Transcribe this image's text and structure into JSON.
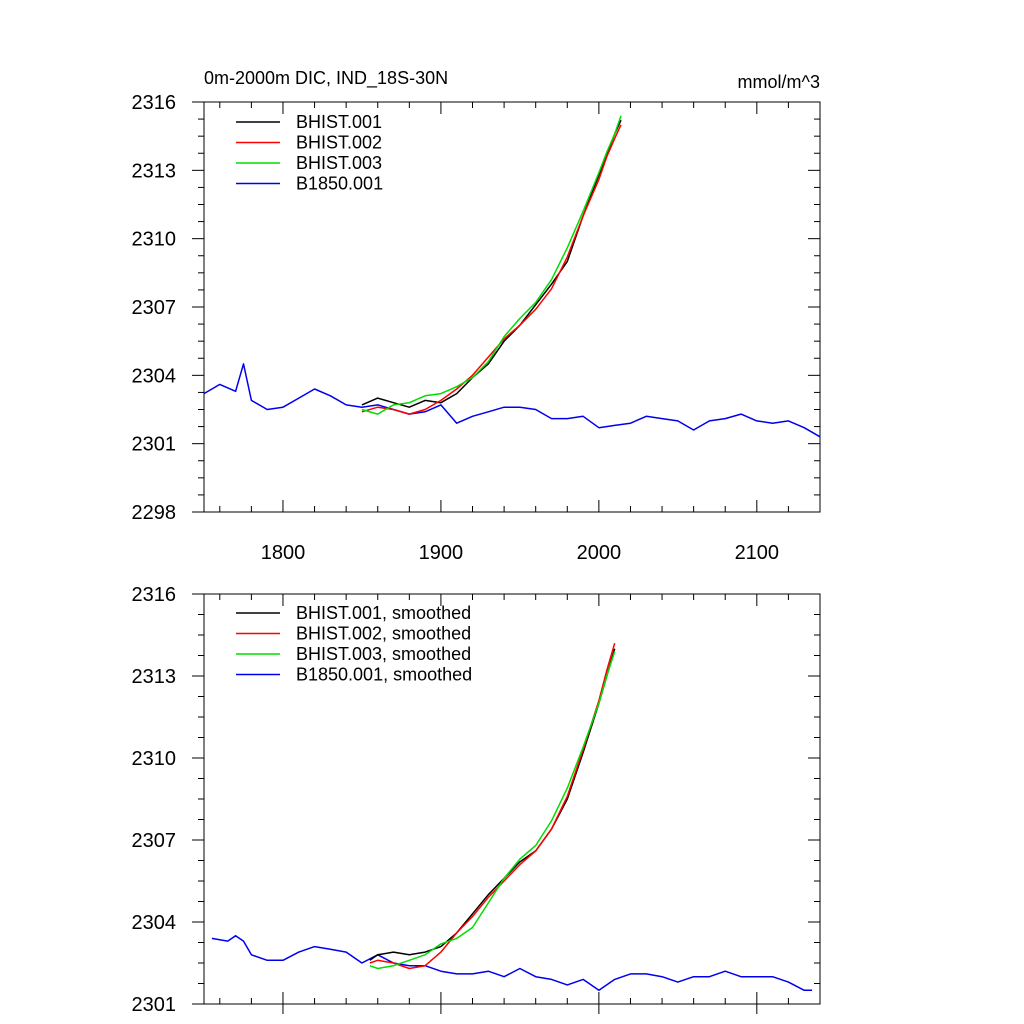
{
  "chart_data": [
    {
      "type": "line",
      "title": "0m-2000m DIC, IND_18S-30N",
      "units": "mmol/m^3",
      "xlim": [
        1750,
        2140
      ],
      "ylim": [
        2298,
        2316
      ],
      "x_ticks": [
        1800,
        1900,
        2000,
        2100
      ],
      "x_tick_labels": [
        "1800",
        "1900",
        "2000",
        "2100"
      ],
      "y_ticks": [
        2298,
        2301,
        2304,
        2307,
        2310,
        2313,
        2316
      ],
      "y_tick_labels": [
        "2298",
        "2301",
        "2304",
        "2307",
        "2310",
        "2313",
        "2316"
      ],
      "grid": false,
      "legend_position": "top-left",
      "series": [
        {
          "name": "BHIST.001",
          "color": "#000000",
          "x": [
            1850,
            1860,
            1870,
            1880,
            1890,
            1900,
            1910,
            1920,
            1930,
            1940,
            1950,
            1960,
            1970,
            1980,
            1990,
            2000,
            2005,
            2010,
            2014
          ],
          "y": [
            2302.7,
            2303.0,
            2302.8,
            2302.6,
            2302.9,
            2302.8,
            2303.2,
            2303.9,
            2304.5,
            2305.5,
            2306.2,
            2307.1,
            2308.0,
            2309.0,
            2311.0,
            2312.8,
            2313.7,
            2314.6,
            2315.2
          ]
        },
        {
          "name": "BHIST.002",
          "color": "#ff0000",
          "x": [
            1850,
            1860,
            1870,
            1880,
            1890,
            1900,
            1910,
            1920,
            1930,
            1940,
            1950,
            1960,
            1970,
            1980,
            1990,
            2000,
            2005,
            2010,
            2014
          ],
          "y": [
            2302.4,
            2302.6,
            2302.5,
            2302.3,
            2302.5,
            2302.9,
            2303.4,
            2304.0,
            2304.8,
            2305.6,
            2306.2,
            2306.9,
            2307.8,
            2309.2,
            2311.0,
            2312.6,
            2313.6,
            2314.4,
            2315.0
          ]
        },
        {
          "name": "BHIST.003",
          "color": "#00dd00",
          "x": [
            1850,
            1860,
            1870,
            1880,
            1890,
            1900,
            1910,
            1920,
            1930,
            1940,
            1950,
            1960,
            1970,
            1980,
            1990,
            2000,
            2005,
            2010,
            2014
          ],
          "y": [
            2302.5,
            2302.3,
            2302.7,
            2302.8,
            2303.1,
            2303.2,
            2303.5,
            2303.9,
            2304.6,
            2305.7,
            2306.5,
            2307.2,
            2308.2,
            2309.6,
            2311.2,
            2312.9,
            2313.8,
            2314.6,
            2315.4
          ]
        },
        {
          "name": "B1850.001",
          "color": "#0000ee",
          "x": [
            1750,
            1760,
            1770,
            1775,
            1780,
            1790,
            1800,
            1810,
            1820,
            1830,
            1840,
            1850,
            1860,
            1870,
            1880,
            1890,
            1900,
            1910,
            1920,
            1930,
            1940,
            1950,
            1960,
            1970,
            1980,
            1990,
            2000,
            2010,
            2020,
            2030,
            2040,
            2050,
            2060,
            2070,
            2080,
            2090,
            2100,
            2110,
            2120,
            2130,
            2140
          ],
          "y": [
            2303.2,
            2303.6,
            2303.3,
            2304.5,
            2302.9,
            2302.5,
            2302.6,
            2303.0,
            2303.4,
            2303.1,
            2302.7,
            2302.6,
            2302.7,
            2302.5,
            2302.3,
            2302.4,
            2302.7,
            2301.9,
            2302.2,
            2302.4,
            2302.6,
            2302.6,
            2302.5,
            2302.1,
            2302.1,
            2302.2,
            2301.7,
            2301.8,
            2301.9,
            2302.2,
            2302.1,
            2302.0,
            2301.6,
            2302.0,
            2302.1,
            2302.3,
            2302.0,
            2301.9,
            2302.0,
            2301.7,
            2301.3
          ]
        }
      ]
    },
    {
      "type": "line",
      "xlim": [
        1750,
        2140
      ],
      "ylim": [
        2301,
        2316
      ],
      "x_ticks": [
        1800,
        1900,
        2000,
        2100
      ],
      "y_ticks": [
        2301,
        2304,
        2307,
        2310,
        2313,
        2316
      ],
      "y_tick_labels": [
        "2301",
        "2304",
        "2307",
        "2310",
        "2313",
        "2316"
      ],
      "grid": false,
      "legend_position": "top-left",
      "series": [
        {
          "name": "BHIST.001, smoothed",
          "color": "#000000",
          "x": [
            1855,
            1860,
            1870,
            1880,
            1890,
            1900,
            1910,
            1920,
            1930,
            1940,
            1950,
            1960,
            1970,
            1980,
            1990,
            2000,
            2005,
            2010
          ],
          "y": [
            2302.6,
            2302.8,
            2302.9,
            2302.8,
            2302.9,
            2303.1,
            2303.6,
            2304.3,
            2305.0,
            2305.6,
            2306.2,
            2306.6,
            2307.4,
            2308.5,
            2310.2,
            2312.0,
            2313.0,
            2314.0
          ]
        },
        {
          "name": "BHIST.002, smoothed",
          "color": "#ff0000",
          "x": [
            1855,
            1860,
            1870,
            1880,
            1890,
            1900,
            1910,
            1920,
            1930,
            1940,
            1950,
            1960,
            1970,
            1980,
            1990,
            2000,
            2005,
            2010
          ],
          "y": [
            2302.5,
            2302.6,
            2302.5,
            2302.3,
            2302.4,
            2302.9,
            2303.6,
            2304.2,
            2304.9,
            2305.5,
            2306.1,
            2306.6,
            2307.4,
            2308.6,
            2310.3,
            2312.1,
            2313.2,
            2314.2
          ]
        },
        {
          "name": "BHIST.003, smoothed",
          "color": "#00dd00",
          "x": [
            1855,
            1860,
            1870,
            1880,
            1890,
            1900,
            1910,
            1920,
            1930,
            1940,
            1950,
            1960,
            1970,
            1980,
            1990,
            2000,
            2005,
            2010
          ],
          "y": [
            2302.4,
            2302.3,
            2302.4,
            2302.6,
            2302.8,
            2303.2,
            2303.4,
            2303.8,
            2304.7,
            2305.6,
            2306.3,
            2306.8,
            2307.7,
            2308.9,
            2310.4,
            2312.0,
            2313.0,
            2313.9
          ]
        },
        {
          "name": "B1850.001, smoothed",
          "color": "#0000ee",
          "x": [
            1755,
            1765,
            1770,
            1775,
            1780,
            1790,
            1800,
            1810,
            1820,
            1830,
            1840,
            1850,
            1860,
            1870,
            1880,
            1890,
            1900,
            1910,
            1920,
            1930,
            1940,
            1950,
            1960,
            1970,
            1980,
            1990,
            2000,
            2010,
            2020,
            2030,
            2040,
            2050,
            2060,
            2070,
            2080,
            2090,
            2100,
            2110,
            2120,
            2130,
            2135
          ],
          "y": [
            2303.4,
            2303.3,
            2303.5,
            2303.3,
            2302.8,
            2302.6,
            2302.6,
            2302.9,
            2303.1,
            2303.0,
            2302.9,
            2302.5,
            2302.8,
            2302.5,
            2302.4,
            2302.4,
            2302.2,
            2302.1,
            2302.1,
            2302.2,
            2302.0,
            2302.3,
            2302.0,
            2301.9,
            2301.7,
            2301.9,
            2301.5,
            2301.9,
            2302.1,
            2302.1,
            2302.0,
            2301.8,
            2302.0,
            2302.0,
            2302.2,
            2302.0,
            2302.0,
            2302.0,
            2301.8,
            2301.5,
            2301.5
          ]
        }
      ]
    }
  ]
}
